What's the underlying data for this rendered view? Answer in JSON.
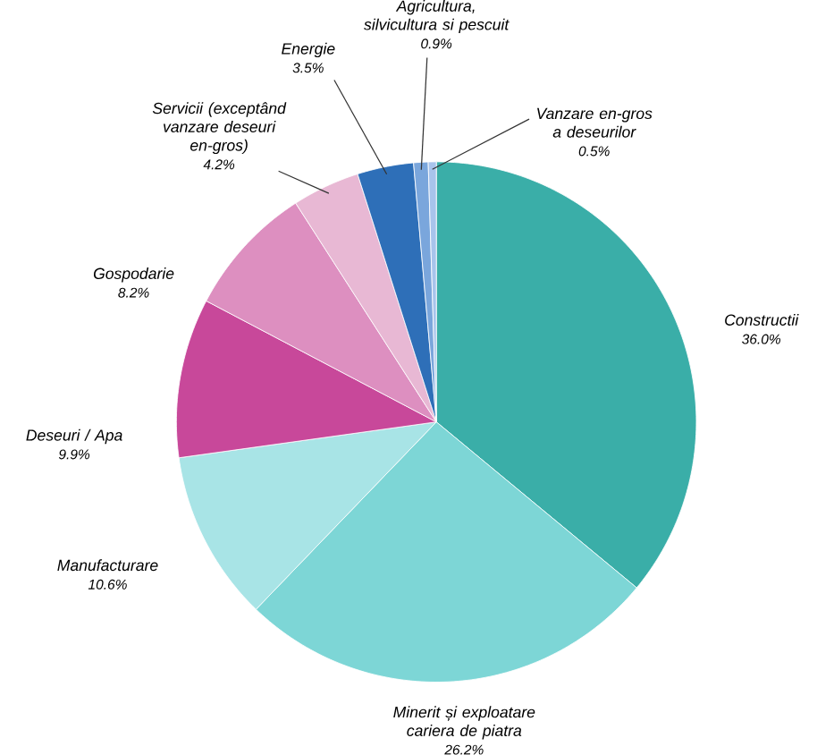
{
  "chart_data": {
    "type": "pie",
    "categories": [
      "Constructii",
      "Minerit și exploatare cariera de piatra",
      "Manufacturare",
      "Deseuri / Apa",
      "Gospodarie",
      "Servicii (exceptând vanzare deseuri en-gros)",
      "Energie",
      "Agricultura, silvicultura si pescuit",
      "Vanzare en-gros a deseurilor"
    ],
    "values": [
      36.0,
      26.2,
      10.6,
      9.9,
      8.2,
      4.2,
      3.5,
      0.9,
      0.5
    ],
    "value_labels": [
      "36.0%",
      "26.2%",
      "10.6%",
      "9.9%",
      "8.2%",
      "4.2%",
      "3.5%",
      "0.9%",
      "0.5%"
    ],
    "colors": [
      "#3aaea8",
      "#7dd6d6",
      "#a8e4e6",
      "#c8489a",
      "#dd8fc0",
      "#e8b8d4",
      "#2e6fb8",
      "#7aa6dc",
      "#a8c4ec"
    ]
  }
}
